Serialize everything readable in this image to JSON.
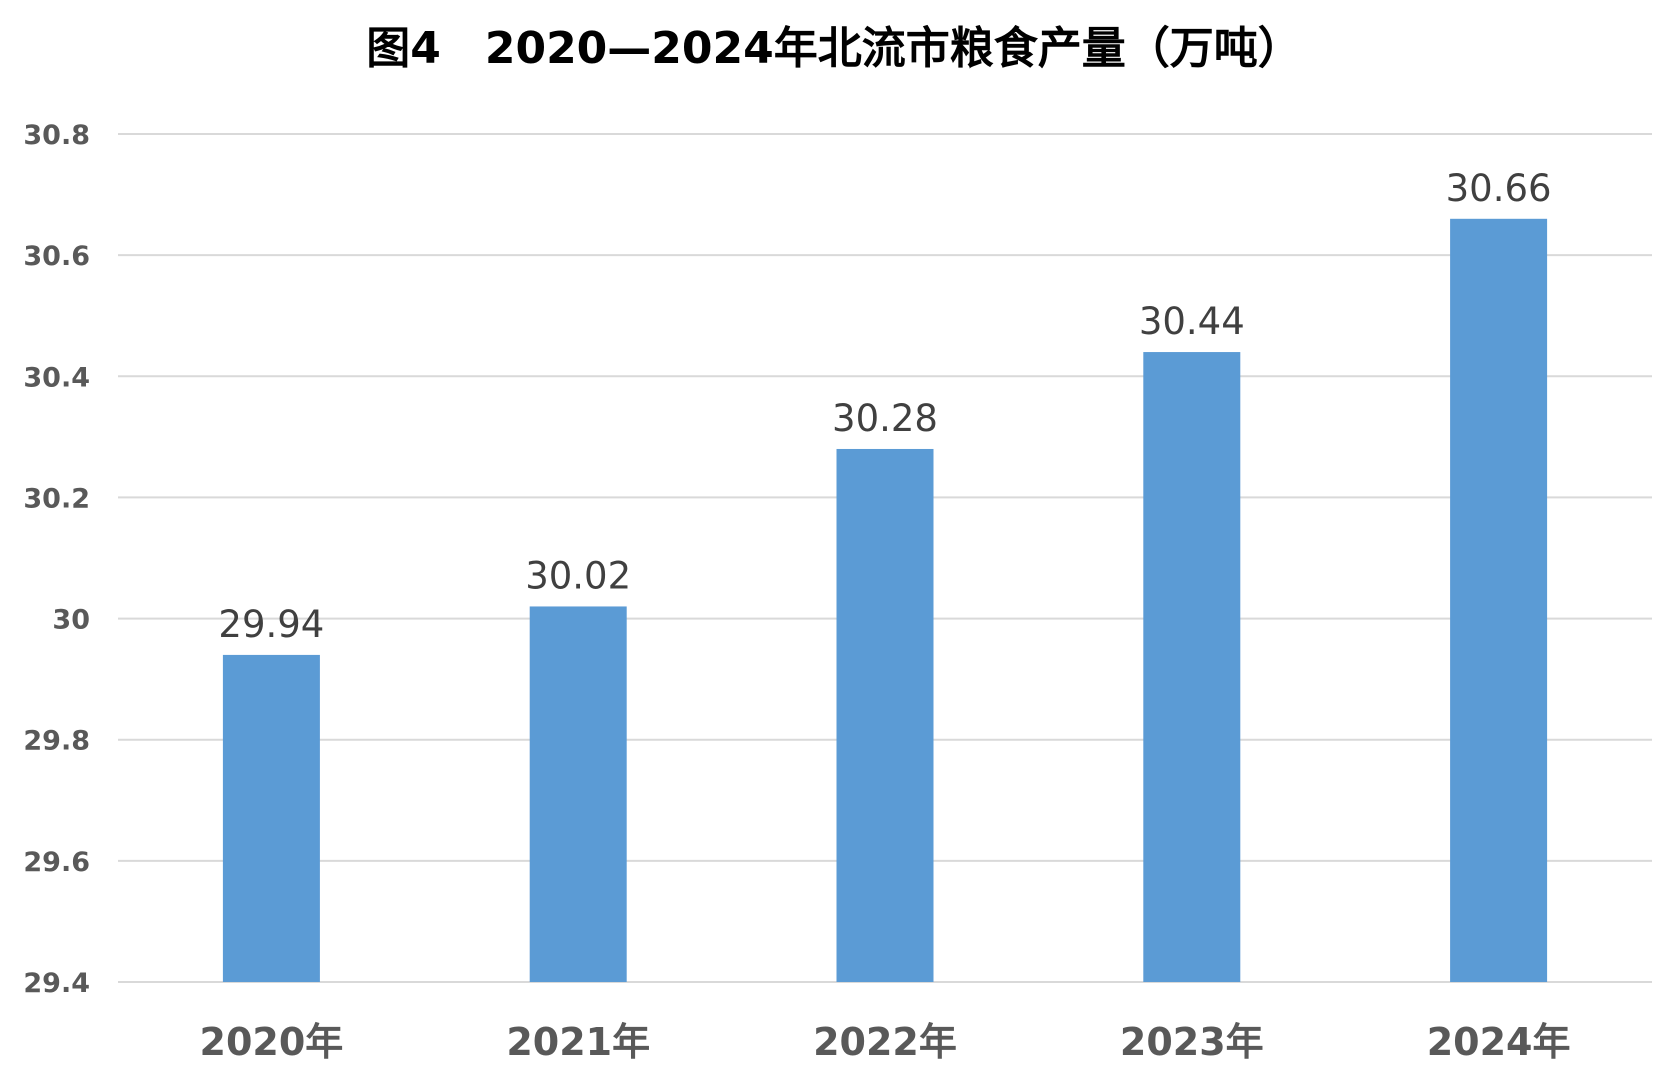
{
  "chart_data": {
    "type": "bar",
    "title": "图4　2020—2024年北流市粮食产量（万吨）",
    "categories": [
      "2020年",
      "2021年",
      "2022年",
      "2023年",
      "2024年"
    ],
    "series": [
      {
        "values": [
          29.94,
          30.02,
          30.28,
          30.44,
          30.66
        ],
        "labels": [
          "29.94",
          "30.02",
          "30.28",
          "30.44",
          "30.66"
        ]
      }
    ],
    "xlabel": "",
    "ylabel": "",
    "ylim": [
      29.4,
      30.8
    ],
    "yticks": [
      29.4,
      29.6,
      29.8,
      30,
      30.2,
      30.4,
      30.6,
      30.8
    ],
    "ytick_labels": [
      "29.4",
      "29.6",
      "29.8",
      "30",
      "30.2",
      "30.4",
      "30.6",
      "30.8"
    ],
    "grid": true,
    "legend": "none",
    "colors": {
      "bar": "#5b9bd5",
      "grid": "#d9d9d9",
      "tick_text": "#595959",
      "label_text": "#404040",
      "title_text": "#000000"
    }
  }
}
